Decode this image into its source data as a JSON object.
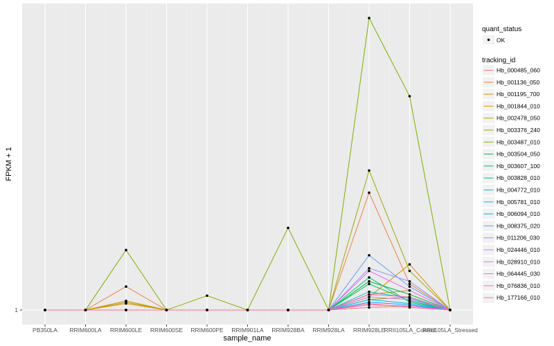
{
  "chart_data": {
    "type": "line",
    "xlabel": "sample_name",
    "ylabel": "FPKM + 1",
    "y_tick_labels": [
      "1"
    ],
    "ylim": [
      1,
      3.24
    ],
    "categories": [
      "PB350LA",
      "RRIM600LA",
      "RRIM600LE",
      "RRIM600SE",
      "RRIM600PE",
      "RRIM901LA",
      "RRIM928BA",
      "RRIM928LA",
      "RRIM928LE",
      "RRII105LA_Control",
      "RRII105LA_Stressed"
    ],
    "legend": {
      "quant_status": {
        "title": "quant_status",
        "items": [
          "OK"
        ]
      },
      "tracking_id": {
        "title": "tracking_id"
      }
    },
    "series": [
      {
        "name": "Hb_000485_060",
        "color": "#F8766D",
        "values": [
          1,
          1,
          1,
          1,
          1,
          1,
          1,
          1,
          1.02,
          1.03,
          1
        ]
      },
      {
        "name": "Hb_001136_050",
        "color": "#EE8044",
        "values": [
          1,
          1,
          1.18,
          1,
          1,
          1,
          1,
          1,
          1.9,
          1.2,
          1
        ]
      },
      {
        "name": "Hb_001195_700",
        "color": "#E08B00",
        "values": [
          1,
          1,
          1.05,
          1,
          1,
          1,
          1,
          1,
          1.1,
          1.35,
          1
        ]
      },
      {
        "name": "Hb_001844_010",
        "color": "#CD9600",
        "values": [
          1,
          1,
          1.07,
          1,
          1,
          1,
          1,
          1,
          1.12,
          1.15,
          1
        ]
      },
      {
        "name": "Hb_002478_050",
        "color": "#B79F00",
        "values": [
          1,
          1,
          1.06,
          1,
          1,
          1,
          1,
          1,
          1.08,
          1.1,
          1
        ]
      },
      {
        "name": "Hb_003376_240",
        "color": "#9CA700",
        "values": [
          1,
          1,
          1,
          1,
          1.11,
          1,
          1,
          1,
          2.07,
          1.3,
          1
        ]
      },
      {
        "name": "Hb_003487_010",
        "color": "#7CAE00",
        "values": [
          1,
          1,
          1.46,
          1,
          1,
          1,
          1.63,
          1,
          3.24,
          2.64,
          1
        ]
      },
      {
        "name": "Hb_003504_050",
        "color": "#00BA38",
        "values": [
          1,
          1,
          1,
          1,
          1,
          1,
          1,
          1,
          1.22,
          1.12,
          1
        ]
      },
      {
        "name": "Hb_003607_100",
        "color": "#00BD5C",
        "values": [
          1,
          1,
          1,
          1,
          1,
          1,
          1,
          1,
          1.2,
          1.07,
          1
        ]
      },
      {
        "name": "Hb_003828_010",
        "color": "#00C08B",
        "values": [
          1,
          1,
          1,
          1,
          1,
          1,
          1,
          1,
          1.25,
          1.06,
          1
        ]
      },
      {
        "name": "Hb_004772_010",
        "color": "#00BFC4",
        "values": [
          1,
          1,
          1,
          1,
          1,
          1,
          1,
          1,
          1.14,
          1.09,
          1
        ]
      },
      {
        "name": "Hb_005781_010",
        "color": "#00B8E7",
        "values": [
          1,
          1,
          1,
          1,
          1,
          1,
          1,
          1,
          1.08,
          1.05,
          1
        ]
      },
      {
        "name": "Hb_006094_010",
        "color": "#00A9FF",
        "values": [
          1,
          1,
          1,
          1,
          1,
          1,
          1,
          1,
          1.06,
          1.04,
          1
        ]
      },
      {
        "name": "Hb_008375_020",
        "color": "#619CFF",
        "values": [
          1,
          1,
          1,
          1,
          1,
          1,
          1,
          1,
          1.42,
          1.18,
          1
        ]
      },
      {
        "name": "Hb_011206_030",
        "color": "#9590FF",
        "values": [
          1,
          1,
          1,
          1,
          1,
          1,
          1,
          1,
          1.32,
          1.22,
          1
        ]
      },
      {
        "name": "Hb_024446_010",
        "color": "#C77CFF",
        "values": [
          1,
          1,
          1,
          1,
          1,
          1,
          1,
          1,
          1.1,
          1.08,
          1
        ]
      },
      {
        "name": "Hb_028910_010",
        "color": "#E76BF3",
        "values": [
          1,
          1,
          1,
          1,
          1,
          1,
          1,
          1,
          1.3,
          1.15,
          1
        ]
      },
      {
        "name": "Hb_064445_030",
        "color": "#FA62DB",
        "values": [
          1,
          1,
          1,
          1,
          1,
          1,
          1,
          1,
          1.04,
          1.03,
          1
        ]
      },
      {
        "name": "Hb_076836_010",
        "color": "#FF62BC",
        "values": [
          1,
          1,
          1,
          1,
          1,
          1,
          1,
          1,
          1.12,
          1.1,
          1
        ]
      },
      {
        "name": "Hb_177166_010",
        "color": "#FF6C91",
        "values": [
          1,
          1,
          1,
          1,
          1,
          1,
          1,
          1,
          1.05,
          1.02,
          1
        ]
      }
    ]
  }
}
